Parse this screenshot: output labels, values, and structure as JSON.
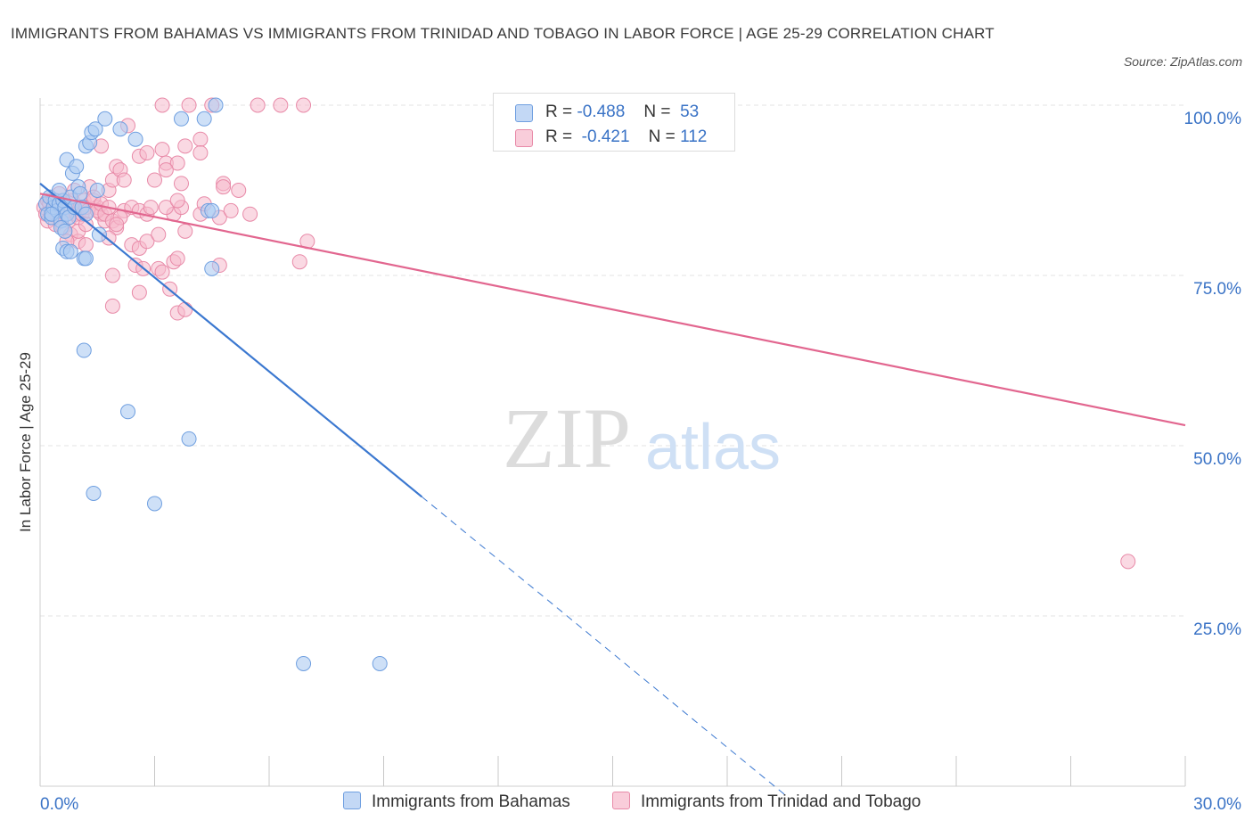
{
  "title": "IMMIGRANTS FROM BAHAMAS VS IMMIGRANTS FROM TRINIDAD AND TOBAGO IN LABOR FORCE | AGE 25-29 CORRELATION CHART",
  "source": "Source: ZipAtlas.com",
  "watermark": {
    "zip": "ZIP",
    "atlas": "atlas"
  },
  "legend": {
    "r_label": "R =",
    "n_label": "N =",
    "series1": {
      "r": "-0.488",
      "n": "53"
    },
    "series2": {
      "r": "-0.421",
      "n": "112"
    }
  },
  "colors": {
    "series1_fill": "#aecbf2",
    "series1_stroke": "#6f9fe0",
    "series1_line": "#3b78d0",
    "series2_fill": "#f6b9cc",
    "series2_stroke": "#e88aa8",
    "series2_line": "#e2668f",
    "tick_label": "#3a73c6",
    "grid": "#e3e3e3"
  },
  "chart_data": {
    "type": "scatter",
    "title": "IMMIGRANTS FROM BAHAMAS VS IMMIGRANTS FROM TRINIDAD AND TOBAGO IN LABOR FORCE | AGE 25-29 CORRELATION CHART",
    "xlabel": "",
    "ylabel": "In Labor Force | Age 25-29",
    "xlim": [
      0,
      30
    ],
    "ylim": [
      0,
      100
    ],
    "x_tick_labels": [
      "0.0%",
      "30.0%"
    ],
    "y_ticks": [
      25,
      50,
      75,
      100
    ],
    "y_tick_labels": [
      "25.0%",
      "50.0%",
      "75.0%",
      "100.0%"
    ],
    "grid": true,
    "series": [
      {
        "name": "Immigrants from Bahamas",
        "r": -0.488,
        "n": 53,
        "trend": {
          "x0": 0,
          "y0": 88.5,
          "x1": 10.0,
          "y1": 42.5,
          "dash_to_x": 19.5
        },
        "points": [
          [
            0.15,
            85.5
          ],
          [
            0.2,
            84
          ],
          [
            0.25,
            86.5
          ],
          [
            0.3,
            83.5
          ],
          [
            0.35,
            85
          ],
          [
            0.4,
            86
          ],
          [
            0.45,
            84.5
          ],
          [
            0.5,
            85.5
          ],
          [
            0.3,
            84
          ],
          [
            0.55,
            83
          ],
          [
            0.6,
            86
          ],
          [
            0.65,
            85
          ],
          [
            0.7,
            84
          ],
          [
            0.75,
            83.5
          ],
          [
            0.8,
            86.5
          ],
          [
            0.9,
            85
          ],
          [
            0.5,
            87.5
          ],
          [
            0.55,
            82
          ],
          [
            0.6,
            79
          ],
          [
            0.65,
            81.5
          ],
          [
            0.7,
            78.5
          ],
          [
            0.8,
            78.5
          ],
          [
            0.7,
            92
          ],
          [
            0.85,
            90
          ],
          [
            0.95,
            91
          ],
          [
            1.0,
            88
          ],
          [
            1.05,
            87
          ],
          [
            1.1,
            85
          ],
          [
            1.2,
            84
          ],
          [
            1.15,
            77.5
          ],
          [
            1.2,
            77.5
          ],
          [
            1.2,
            94
          ],
          [
            1.3,
            94.5
          ],
          [
            1.35,
            96
          ],
          [
            1.45,
            96.5
          ],
          [
            1.5,
            87.5
          ],
          [
            1.55,
            81
          ],
          [
            1.7,
            98
          ],
          [
            2.1,
            96.5
          ],
          [
            2.5,
            95
          ],
          [
            3.7,
            98
          ],
          [
            4.3,
            98
          ],
          [
            4.6,
            100
          ],
          [
            4.4,
            84.5
          ],
          [
            4.5,
            84.5
          ],
          [
            4.5,
            76
          ],
          [
            1.15,
            64
          ],
          [
            2.3,
            55
          ],
          [
            3.9,
            51
          ],
          [
            1.4,
            43
          ],
          [
            3.0,
            41.5
          ],
          [
            6.9,
            18
          ],
          [
            8.9,
            18
          ]
        ]
      },
      {
        "name": "Immigrants from Trinidad and Tobago",
        "r": -0.421,
        "n": 112,
        "trend": {
          "x0": 0,
          "y0": 87.0,
          "x1": 30.0,
          "y1": 53.0
        },
        "points": [
          [
            0.1,
            85
          ],
          [
            0.15,
            84
          ],
          [
            0.2,
            86
          ],
          [
            0.25,
            85.5
          ],
          [
            0.3,
            84.5
          ],
          [
            0.35,
            86
          ],
          [
            0.4,
            85
          ],
          [
            0.45,
            83.5
          ],
          [
            0.5,
            84
          ],
          [
            0.55,
            85.5
          ],
          [
            0.6,
            86
          ],
          [
            0.65,
            84
          ],
          [
            0.7,
            85
          ],
          [
            0.75,
            83
          ],
          [
            0.8,
            84.5
          ],
          [
            0.85,
            86
          ],
          [
            0.9,
            85
          ],
          [
            0.95,
            84
          ],
          [
            1.0,
            83.5
          ],
          [
            1.05,
            85
          ],
          [
            1.1,
            84
          ],
          [
            1.15,
            86
          ],
          [
            1.2,
            85
          ],
          [
            1.25,
            84.5
          ],
          [
            0.2,
            83
          ],
          [
            0.4,
            82.5
          ],
          [
            0.6,
            82
          ],
          [
            0.8,
            81
          ],
          [
            1.0,
            80
          ],
          [
            1.2,
            79.5
          ],
          [
            0.5,
            87
          ],
          [
            0.9,
            87.5
          ],
          [
            1.3,
            88
          ],
          [
            1.4,
            86
          ],
          [
            1.5,
            85
          ],
          [
            1.6,
            84
          ],
          [
            1.7,
            83
          ],
          [
            1.8,
            87.5
          ],
          [
            1.9,
            89
          ],
          [
            2.0,
            91
          ],
          [
            2.1,
            90.5
          ],
          [
            2.2,
            84.5
          ],
          [
            1.4,
            86.5
          ],
          [
            1.5,
            84.5
          ],
          [
            1.6,
            85.5
          ],
          [
            1.7,
            84
          ],
          [
            1.8,
            85
          ],
          [
            1.9,
            83
          ],
          [
            2.0,
            82
          ],
          [
            2.1,
            83.5
          ],
          [
            2.2,
            89
          ],
          [
            1.6,
            94
          ],
          [
            2.3,
            97
          ],
          [
            2.6,
            92.5
          ],
          [
            2.8,
            93
          ],
          [
            3.2,
            93.5
          ],
          [
            3.3,
            91.5
          ],
          [
            3.6,
            91.5
          ],
          [
            3.8,
            94
          ],
          [
            4.2,
            95
          ],
          [
            4.2,
            93
          ],
          [
            3.0,
            89
          ],
          [
            3.3,
            90.5
          ],
          [
            3.7,
            88.5
          ],
          [
            2.4,
            79.5
          ],
          [
            2.6,
            79
          ],
          [
            2.8,
            80
          ],
          [
            2.5,
            76.5
          ],
          [
            2.7,
            76
          ],
          [
            3.1,
            76
          ],
          [
            3.2,
            75.5
          ],
          [
            3.4,
            73
          ],
          [
            2.6,
            72.5
          ],
          [
            1.9,
            75
          ],
          [
            1.9,
            70.5
          ],
          [
            3.6,
            69.5
          ],
          [
            3.8,
            70
          ],
          [
            3.5,
            77
          ],
          [
            3.8,
            81.5
          ],
          [
            3.5,
            84
          ],
          [
            3.3,
            85
          ],
          [
            3.7,
            85
          ],
          [
            4.2,
            84
          ],
          [
            4.7,
            83.5
          ],
          [
            4.8,
            88.5
          ],
          [
            4.8,
            88
          ],
          [
            5.2,
            87.5
          ],
          [
            4.7,
            76.5
          ],
          [
            3.6,
            77.5
          ],
          [
            3.1,
            81
          ],
          [
            2.4,
            85
          ],
          [
            2.6,
            84.5
          ],
          [
            2.8,
            84
          ],
          [
            1.8,
            80.5
          ],
          [
            2.0,
            82.5
          ],
          [
            1.0,
            81.5
          ],
          [
            0.7,
            80
          ],
          [
            1.2,
            82.5
          ],
          [
            3.2,
            100
          ],
          [
            3.9,
            100
          ],
          [
            4.5,
            100
          ],
          [
            5.7,
            100
          ],
          [
            6.3,
            100
          ],
          [
            6.9,
            100
          ],
          [
            2.9,
            85
          ],
          [
            3.6,
            86
          ],
          [
            4.3,
            85.5
          ],
          [
            5.0,
            84.5
          ],
          [
            5.5,
            84
          ],
          [
            6.8,
            77
          ],
          [
            7.0,
            80
          ],
          [
            28.5,
            33
          ]
        ]
      }
    ]
  }
}
